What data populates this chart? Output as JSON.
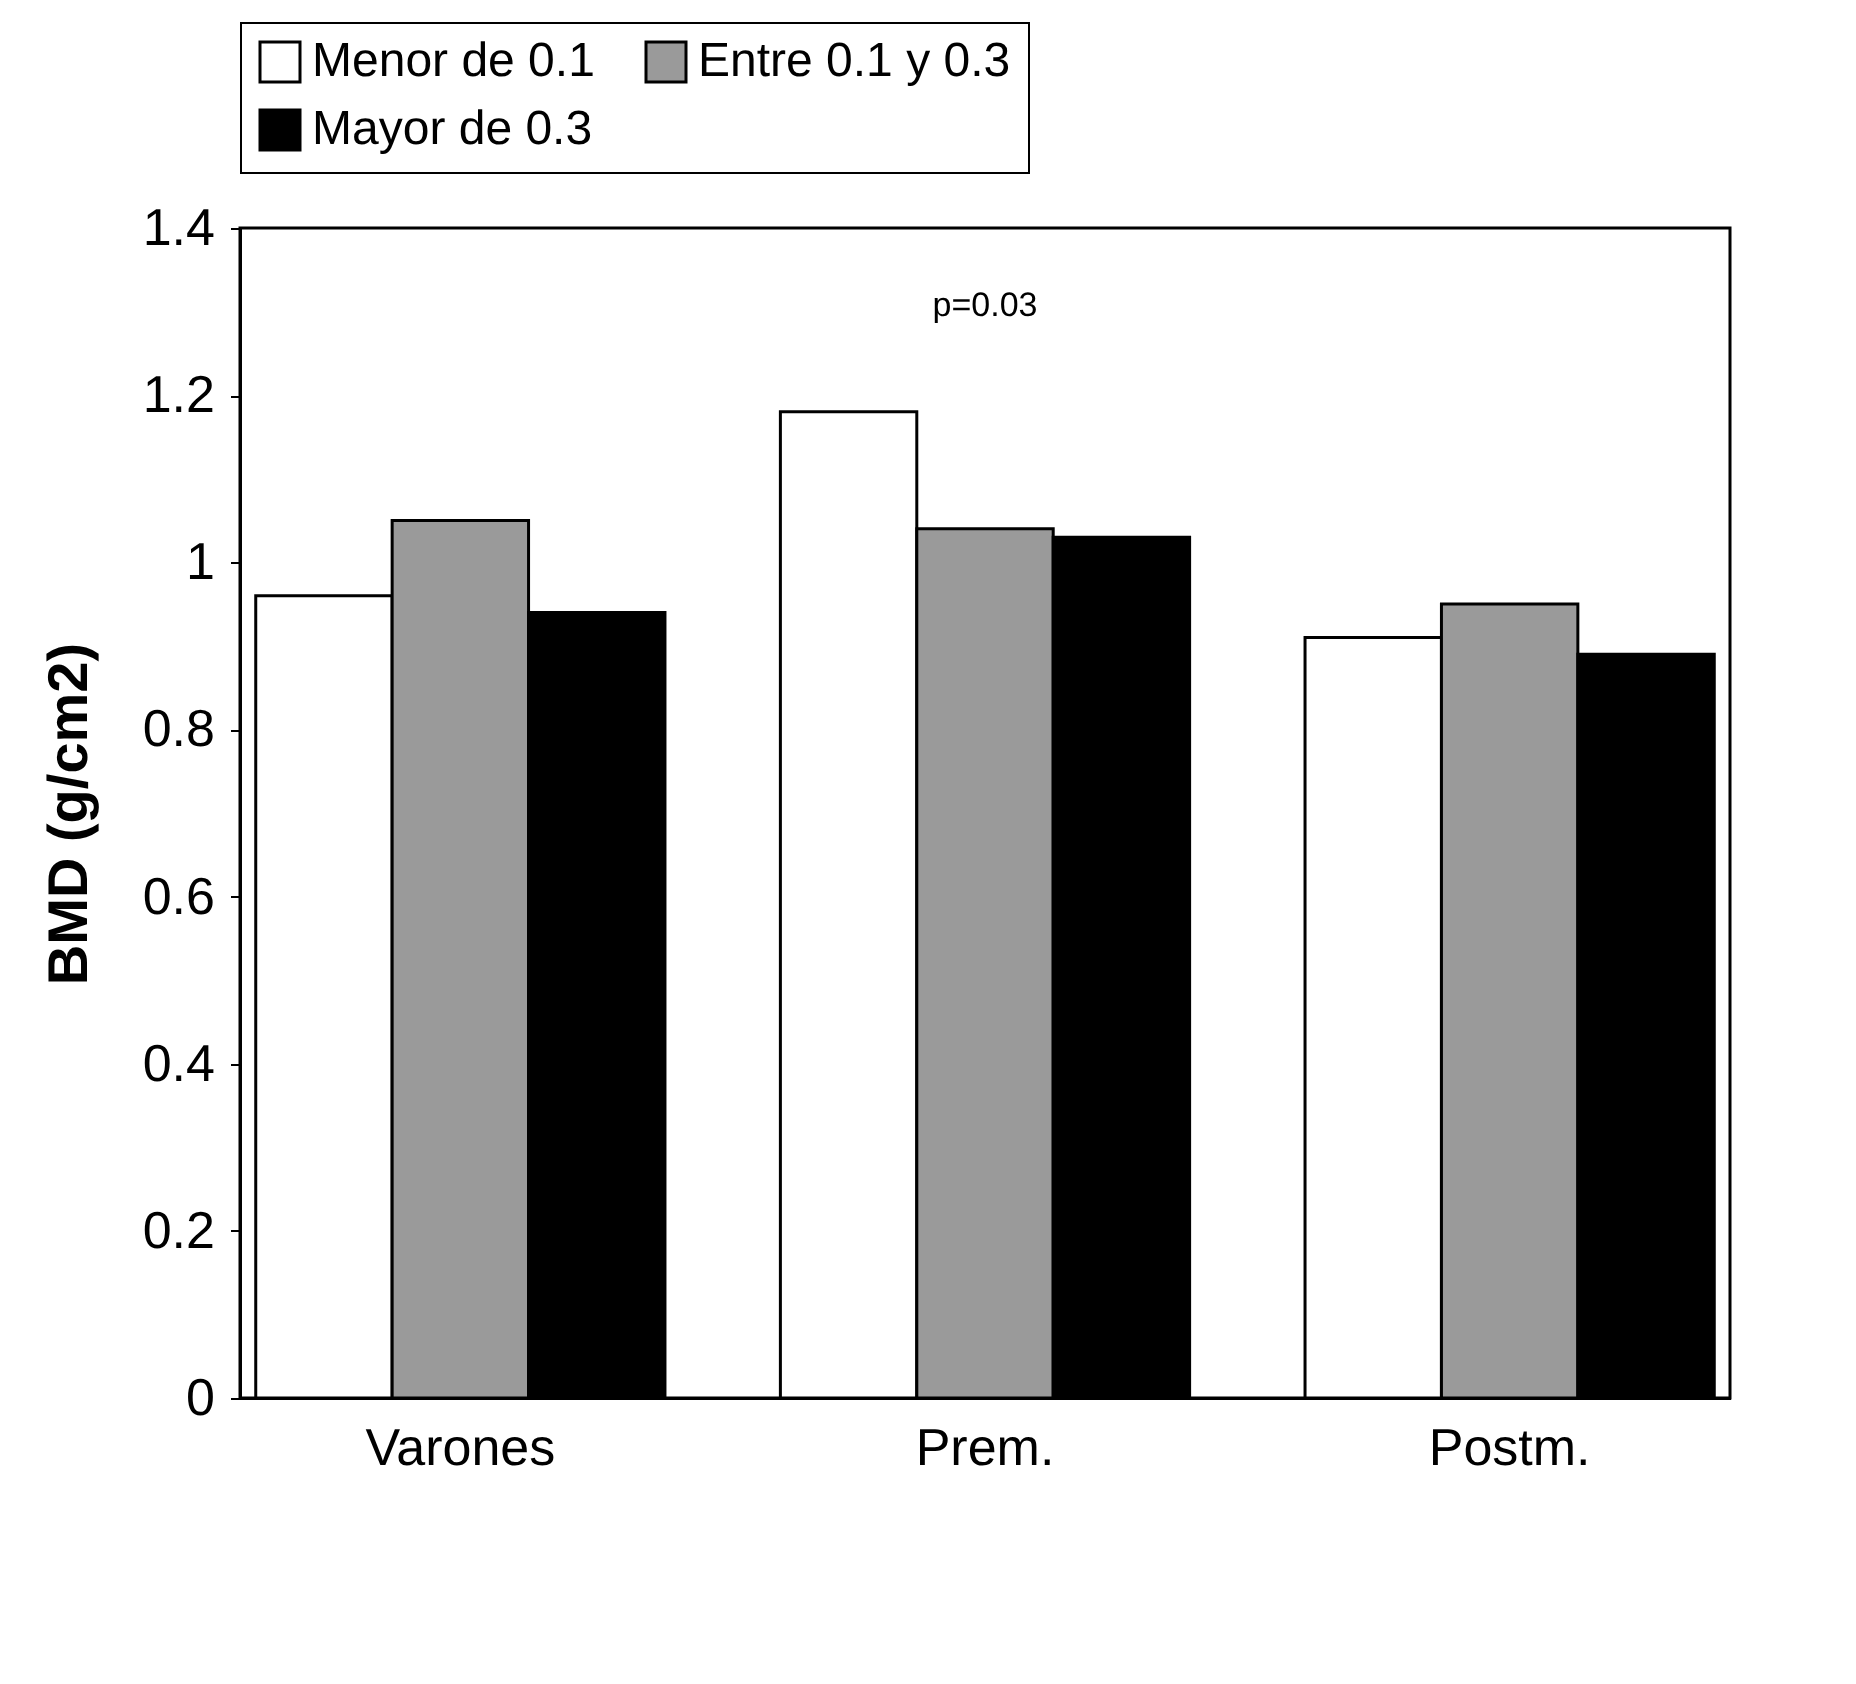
{
  "chart_data": {
    "type": "bar",
    "ylabel": "BMD (g/cm2)",
    "categories": [
      "Varones",
      "Prem.",
      "Postm."
    ],
    "series": [
      {
        "name": "Menor de 0.1",
        "color": "#ffffff",
        "values": [
          0.96,
          1.18,
          0.91
        ]
      },
      {
        "name": "Entre 0.1 y 0.3",
        "color": "#9a9a9a",
        "values": [
          1.05,
          1.04,
          0.95
        ]
      },
      {
        "name": "Mayor de 0.3",
        "color": "#000000",
        "values": [
          0.94,
          1.03,
          0.89
        ]
      }
    ],
    "ylim": [
      0,
      1.4
    ],
    "yticks": [
      0,
      0.2,
      0.4,
      0.6,
      0.8,
      1,
      1.2,
      1.4
    ],
    "grid": false,
    "legend": "top",
    "annotations": [
      "p=0.03"
    ]
  }
}
